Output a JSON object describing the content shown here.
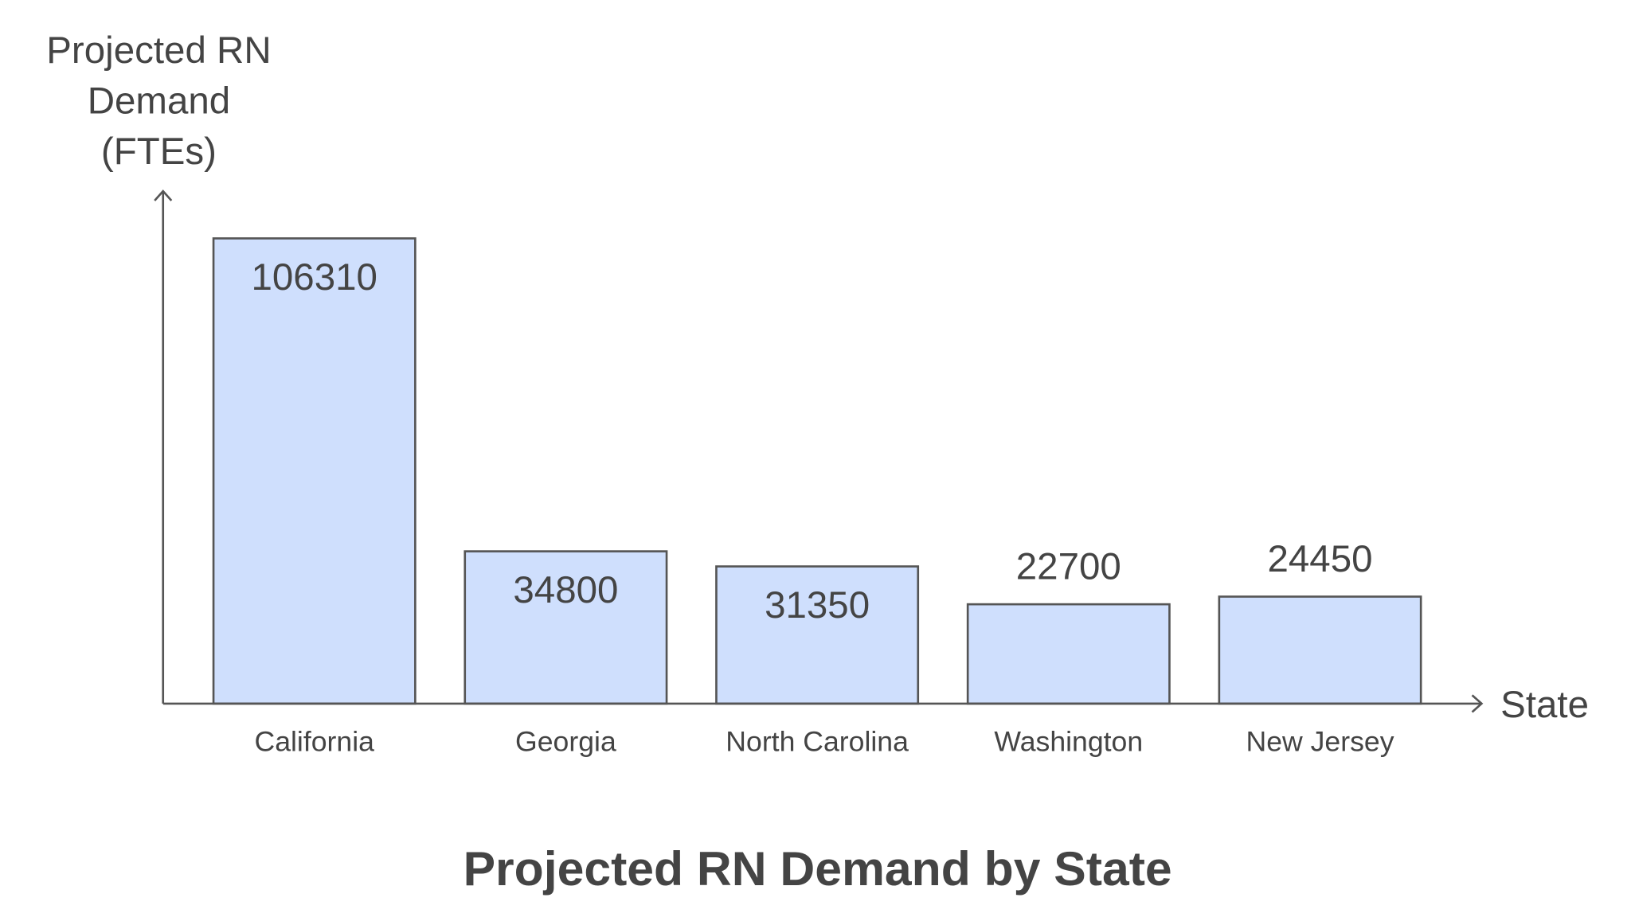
{
  "chart_data": {
    "type": "bar",
    "title": "Projected RN Demand by State",
    "xlabel": "State",
    "ylabel_lines": [
      "Projected RN",
      "Demand",
      "(FTEs)"
    ],
    "categories": [
      "California",
      "Georgia",
      "North Carolina",
      "Washington",
      "New Jersey"
    ],
    "values": [
      106310,
      34800,
      31350,
      22700,
      24450
    ],
    "data_labels": [
      "106310",
      "34800",
      "31350",
      "22700",
      "24450"
    ],
    "ylim": [
      0,
      106310
    ],
    "grid": false,
    "legend": "none",
    "colors": {
      "bar_fill": "#cfdffd",
      "bar_stroke": "#555555",
      "text": "#444444",
      "axis": "#555555"
    }
  }
}
